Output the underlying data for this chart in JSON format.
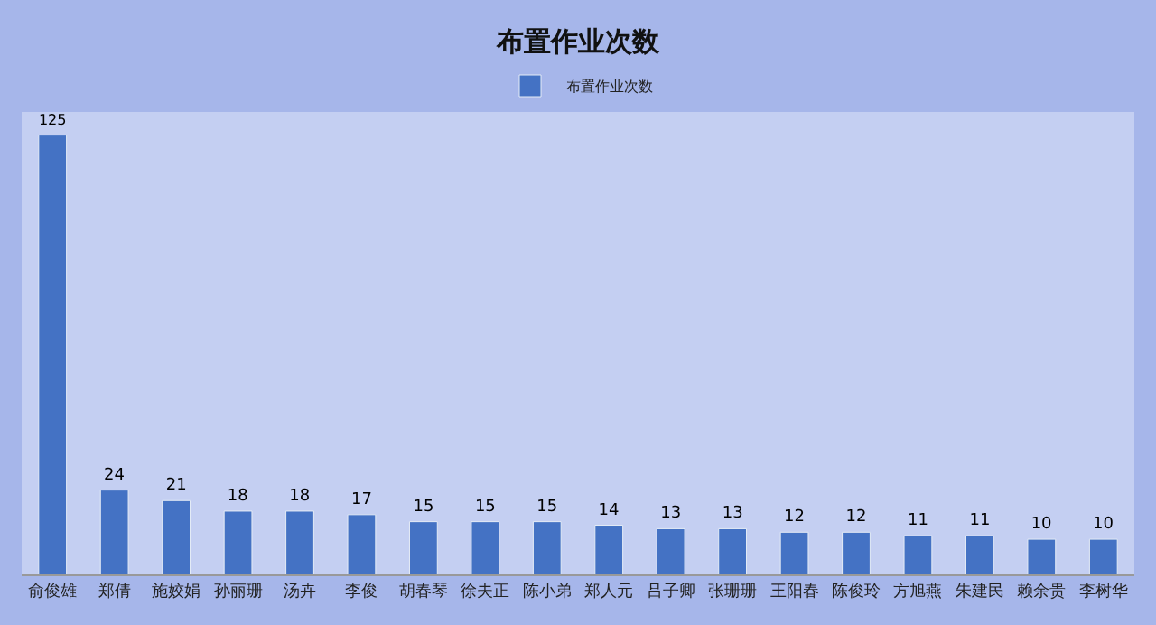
{
  "chart_data": {
    "type": "bar",
    "title": "布置作业次数",
    "categories": [
      "俞俊雄",
      "郑倩",
      "施姣娟",
      "孙丽珊",
      "汤卉",
      "李俊",
      "胡春琴",
      "徐夫正",
      "陈小弟",
      "郑人元",
      "吕子卿",
      "张珊珊",
      "王阳春",
      "陈俊玲",
      "方旭燕",
      "朱建民",
      "赖余贵",
      "李树华"
    ],
    "series": [
      {
        "name": "布置作业次数",
        "color": "#4472c4",
        "values": [
          125,
          24,
          21,
          18,
          18,
          17,
          15,
          15,
          15,
          14,
          13,
          13,
          12,
          12,
          11,
          11,
          10,
          10
        ]
      }
    ],
    "data_labels": true,
    "legend": "top",
    "tick_labels": "x",
    "grid": false
  }
}
